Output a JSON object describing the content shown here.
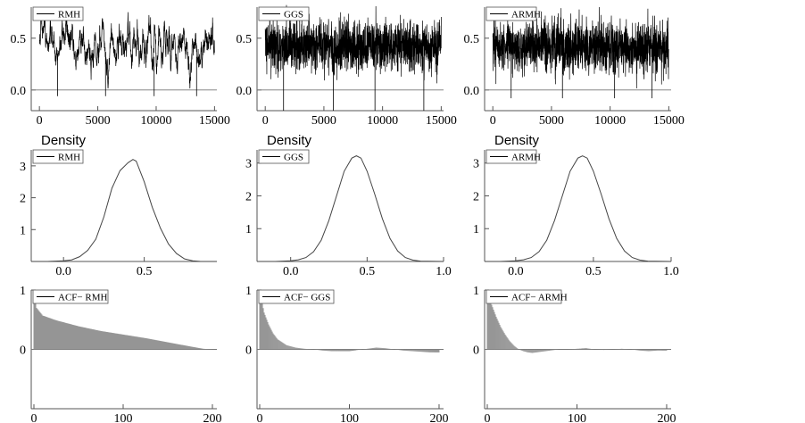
{
  "figure_title": "",
  "chart_data": [
    {
      "id": "trace-rmh",
      "type": "line",
      "row": "trace",
      "col": 0,
      "title": "",
      "ylabel": "",
      "legend": "RMH",
      "xlim": [
        -700,
        15200
      ],
      "ylim": [
        -0.2,
        0.8
      ],
      "xticks": [
        0,
        5000,
        10000,
        15000
      ],
      "xtick_labels": [
        "0",
        "5000",
        "10000",
        "15000"
      ],
      "yticks": [
        0.0,
        0.5
      ],
      "ytick_labels": [
        "0.0",
        "0.5"
      ],
      "hline": 0,
      "series": [
        {
          "name": "RMH",
          "n": 15000,
          "mean": 0.42,
          "sd": 0.12,
          "min": -0.06,
          "max": 0.78,
          "autocorrelation": "high"
        }
      ]
    },
    {
      "id": "trace-ggs",
      "type": "line",
      "row": "trace",
      "col": 1,
      "title": "",
      "ylabel": "",
      "legend": "GGS",
      "xlim": [
        -700,
        15200
      ],
      "ylim": [
        -0.2,
        0.8
      ],
      "xticks": [
        0,
        5000,
        10000,
        15000
      ],
      "xtick_labels": [
        "0",
        "5000",
        "10000",
        "15000"
      ],
      "yticks": [
        0.0,
        0.5
      ],
      "ytick_labels": [
        "0.0",
        "0.5"
      ],
      "hline": 0,
      "series": [
        {
          "name": "GGS",
          "n": 15000,
          "mean": 0.42,
          "sd": 0.12,
          "min": -0.2,
          "max": 0.82,
          "autocorrelation": "low"
        }
      ]
    },
    {
      "id": "trace-armh",
      "type": "line",
      "row": "trace",
      "col": 2,
      "title": "",
      "ylabel": "",
      "legend": "ARMH",
      "xlim": [
        -700,
        15200
      ],
      "ylim": [
        -0.2,
        0.8
      ],
      "xticks": [
        0,
        5000,
        10000,
        15000
      ],
      "xtick_labels": [
        "0",
        "5000",
        "10000",
        "15000"
      ],
      "yticks": [
        0.0,
        0.5
      ],
      "ytick_labels": [
        "0.0",
        "0.5"
      ],
      "hline": 0,
      "series": [
        {
          "name": "ARMH",
          "n": 15000,
          "mean": 0.42,
          "sd": 0.12,
          "min": -0.08,
          "max": 0.8,
          "autocorrelation": "low"
        }
      ]
    },
    {
      "id": "density-rmh",
      "type": "line",
      "row": "density",
      "col": 0,
      "title": "",
      "ylabel": "Density",
      "legend": "RMH",
      "xlim": [
        -0.2,
        0.95
      ],
      "ylim": [
        0,
        3.5
      ],
      "xticks": [
        0.0,
        0.5
      ],
      "xtick_labels": [
        "0.0",
        "0.5"
      ],
      "yticks": [
        1,
        2,
        3
      ],
      "ytick_labels": [
        "1",
        "2",
        "3"
      ],
      "series": [
        {
          "name": "RMH",
          "x": [
            -0.2,
            -0.1,
            0.0,
            0.05,
            0.1,
            0.15,
            0.2,
            0.25,
            0.3,
            0.35,
            0.4,
            0.43,
            0.45,
            0.5,
            0.55,
            0.6,
            0.65,
            0.7,
            0.75,
            0.8,
            0.85,
            0.95
          ],
          "y": [
            0.0,
            0.0,
            0.02,
            0.05,
            0.15,
            0.35,
            0.7,
            1.4,
            2.3,
            2.85,
            3.1,
            3.2,
            3.15,
            2.5,
            1.7,
            1.05,
            0.55,
            0.25,
            0.08,
            0.02,
            0.0,
            0.0
          ]
        }
      ]
    },
    {
      "id": "density-ggs",
      "type": "line",
      "row": "density",
      "col": 1,
      "title": "",
      "ylabel": "Density",
      "legend": "GGS",
      "xlim": [
        -0.22,
        1.0
      ],
      "ylim": [
        0,
        3.4
      ],
      "xticks": [
        0.0,
        0.5,
        1.0
      ],
      "xtick_labels": [
        "0.0",
        "0.5",
        "1.0"
      ],
      "yticks": [
        1,
        2,
        3
      ],
      "ytick_labels": [
        "1",
        "2",
        "3"
      ],
      "series": [
        {
          "name": "GGS",
          "x": [
            -0.22,
            -0.1,
            0.0,
            0.05,
            0.1,
            0.15,
            0.2,
            0.25,
            0.3,
            0.35,
            0.4,
            0.43,
            0.46,
            0.5,
            0.55,
            0.6,
            0.65,
            0.7,
            0.75,
            0.8,
            0.85,
            1.0
          ],
          "y": [
            0.0,
            0.0,
            0.02,
            0.05,
            0.12,
            0.3,
            0.65,
            1.25,
            2.0,
            2.75,
            3.15,
            3.22,
            3.15,
            2.75,
            2.05,
            1.3,
            0.7,
            0.32,
            0.12,
            0.04,
            0.01,
            0.0
          ]
        }
      ]
    },
    {
      "id": "density-armh",
      "type": "line",
      "row": "density",
      "col": 2,
      "title": "",
      "ylabel": "Density",
      "legend": "ARMH",
      "xlim": [
        -0.2,
        1.0
      ],
      "ylim": [
        0,
        3.4
      ],
      "xticks": [
        0.0,
        0.5,
        1.0
      ],
      "xtick_labels": [
        "0.0",
        "0.5",
        "1.0"
      ],
      "yticks": [
        1,
        2,
        3
      ],
      "ytick_labels": [
        "1",
        "2",
        "3"
      ],
      "series": [
        {
          "name": "ARMH",
          "x": [
            -0.2,
            -0.1,
            0.0,
            0.05,
            0.1,
            0.15,
            0.2,
            0.25,
            0.3,
            0.35,
            0.4,
            0.43,
            0.46,
            0.5,
            0.55,
            0.6,
            0.65,
            0.7,
            0.75,
            0.8,
            0.85,
            1.0
          ],
          "y": [
            0.0,
            0.0,
            0.02,
            0.05,
            0.12,
            0.3,
            0.65,
            1.25,
            2.0,
            2.75,
            3.15,
            3.22,
            3.15,
            2.75,
            2.05,
            1.3,
            0.7,
            0.32,
            0.12,
            0.04,
            0.01,
            0.0
          ]
        }
      ]
    },
    {
      "id": "acf-rmh",
      "type": "bar",
      "row": "acf",
      "col": 0,
      "title": "",
      "ylabel": "",
      "legend": "ACF− RMH",
      "xlim": [
        -3,
        205
      ],
      "ylim": [
        -1,
        1
      ],
      "xticks": [
        0,
        100,
        200
      ],
      "xtick_labels": [
        "0",
        "100",
        "200"
      ],
      "yticks": [
        0,
        1
      ],
      "ytick_labels": [
        "0",
        "1"
      ],
      "hline": 0,
      "series": [
        {
          "name": "ACF− RMH",
          "lags": 200,
          "points": [
            [
              0,
              1.0
            ],
            [
              3,
              0.7
            ],
            [
              10,
              0.57
            ],
            [
              25,
              0.49
            ],
            [
              50,
              0.39
            ],
            [
              75,
              0.31
            ],
            [
              100,
              0.25
            ],
            [
              125,
              0.19
            ],
            [
              150,
              0.12
            ],
            [
              175,
              0.05
            ],
            [
              190,
              0.01
            ],
            [
              200,
              0.0
            ]
          ]
        }
      ]
    },
    {
      "id": "acf-ggs",
      "type": "bar",
      "row": "acf",
      "col": 1,
      "title": "",
      "ylabel": "",
      "legend": "ACF− GGS",
      "xlim": [
        -3,
        205
      ],
      "ylim": [
        -1,
        1
      ],
      "xticks": [
        0,
        100,
        200
      ],
      "xtick_labels": [
        "0",
        "100",
        "200"
      ],
      "yticks": [
        0,
        1
      ],
      "ytick_labels": [
        "0",
        "1"
      ],
      "hline": 0,
      "series": [
        {
          "name": "ACF− GGS",
          "lags": 200,
          "points": [
            [
              0,
              1.0
            ],
            [
              5,
              0.62
            ],
            [
              10,
              0.42
            ],
            [
              15,
              0.27
            ],
            [
              20,
              0.17
            ],
            [
              30,
              0.07
            ],
            [
              40,
              0.03
            ],
            [
              50,
              0.01
            ],
            [
              60,
              0.0
            ],
            [
              70,
              -0.02
            ],
            [
              80,
              -0.03
            ],
            [
              90,
              -0.03
            ],
            [
              100,
              -0.03
            ],
            [
              110,
              -0.01
            ],
            [
              120,
              0.01
            ],
            [
              130,
              0.03
            ],
            [
              140,
              0.02
            ],
            [
              150,
              0.0
            ],
            [
              160,
              -0.02
            ],
            [
              170,
              -0.03
            ],
            [
              180,
              -0.04
            ],
            [
              190,
              -0.05
            ],
            [
              200,
              -0.05
            ]
          ]
        }
      ]
    },
    {
      "id": "acf-armh",
      "type": "bar",
      "row": "acf",
      "col": 2,
      "title": "",
      "ylabel": "",
      "legend": "ACF− ARMH",
      "xlim": [
        -3,
        205
      ],
      "ylim": [
        -1,
        1
      ],
      "xticks": [
        0,
        100,
        200
      ],
      "xtick_labels": [
        "0",
        "100",
        "200"
      ],
      "yticks": [
        0,
        1
      ],
      "ytick_labels": [
        "0",
        "1"
      ],
      "hline": 0,
      "series": [
        {
          "name": "ACF− ARMH",
          "lags": 200,
          "points": [
            [
              0,
              1.0
            ],
            [
              5,
              0.75
            ],
            [
              10,
              0.55
            ],
            [
              15,
              0.38
            ],
            [
              20,
              0.25
            ],
            [
              25,
              0.14
            ],
            [
              30,
              0.06
            ],
            [
              35,
              0.0
            ],
            [
              40,
              -0.03
            ],
            [
              45,
              -0.05
            ],
            [
              50,
              -0.06
            ],
            [
              55,
              -0.05
            ],
            [
              60,
              -0.04
            ],
            [
              70,
              -0.02
            ],
            [
              80,
              0.0
            ],
            [
              90,
              0.0
            ],
            [
              100,
              0.01
            ],
            [
              110,
              0.02
            ],
            [
              120,
              0.0
            ],
            [
              130,
              -0.01
            ],
            [
              140,
              0.0
            ],
            [
              150,
              0.01
            ],
            [
              160,
              0.0
            ],
            [
              170,
              -0.02
            ],
            [
              180,
              -0.03
            ],
            [
              190,
              -0.02
            ],
            [
              200,
              -0.02
            ]
          ]
        }
      ]
    }
  ]
}
